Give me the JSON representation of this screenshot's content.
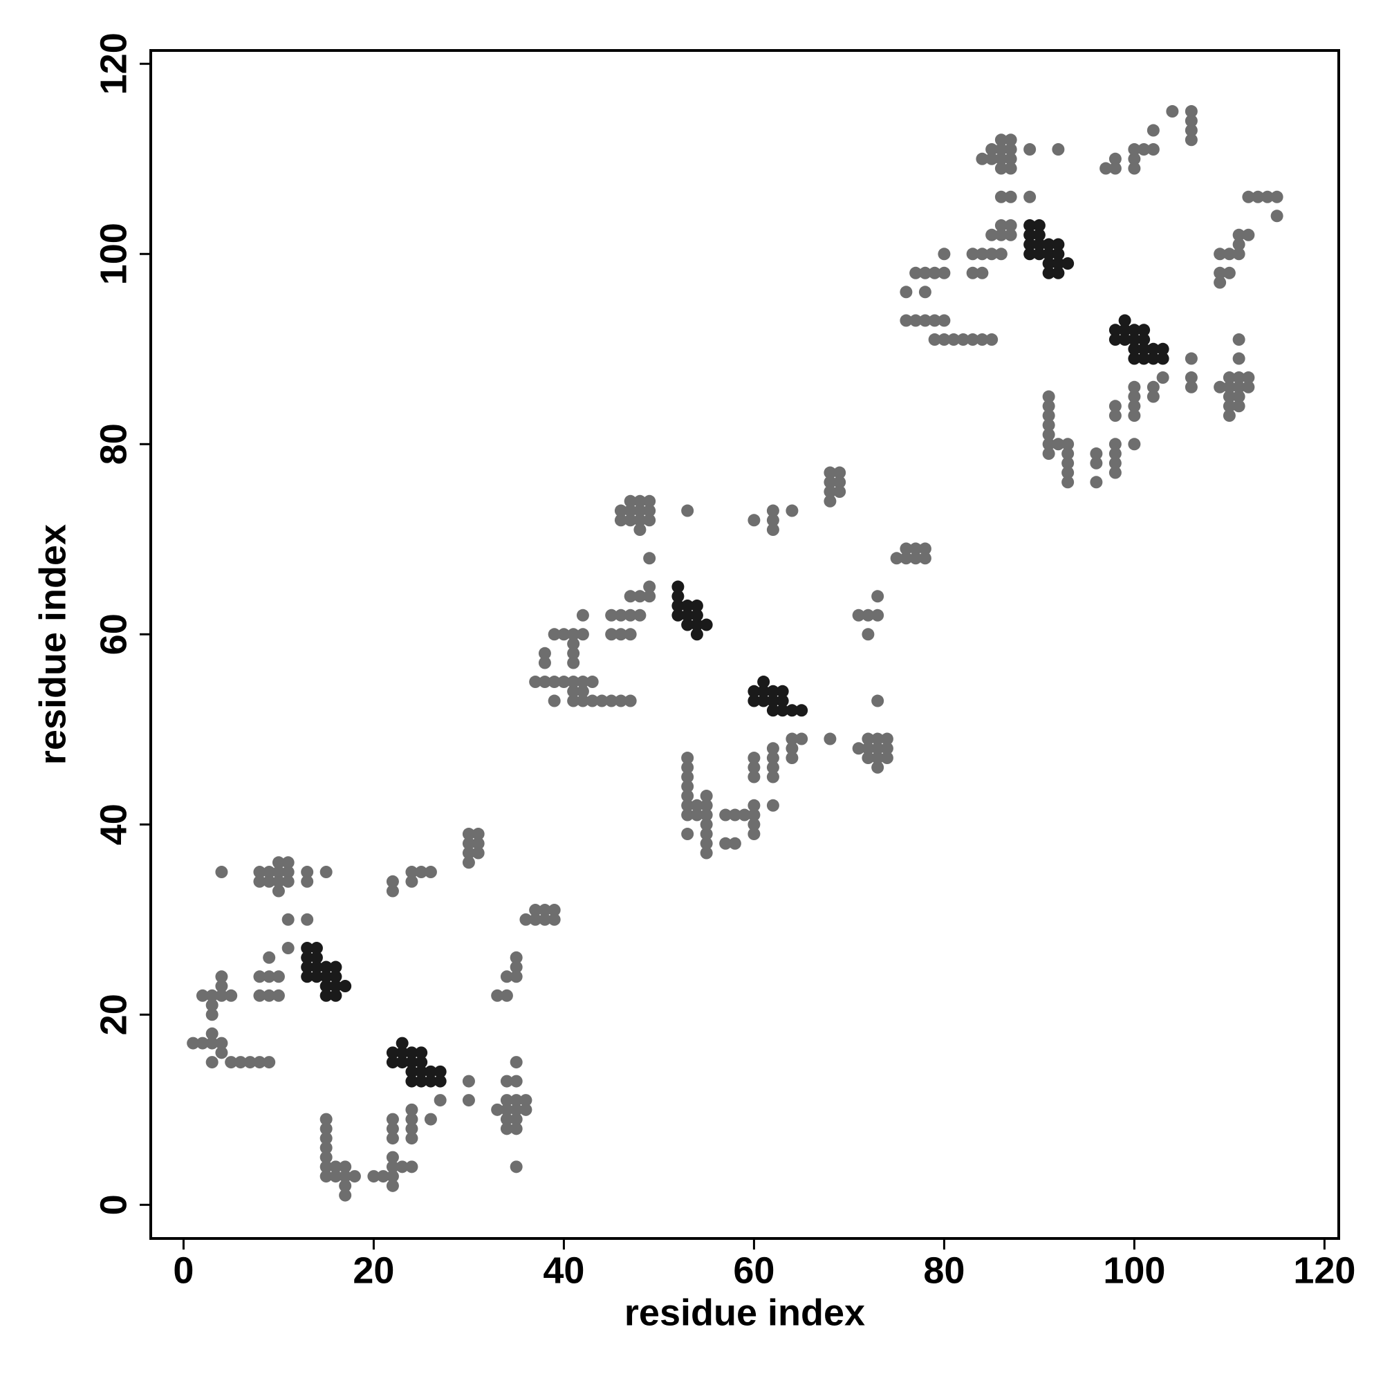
{
  "chart_data": {
    "type": "scatter",
    "xlabel": "residue index",
    "ylabel": "residue index",
    "xlim": [
      -3.45,
      121.5
    ],
    "ylim": [
      -3.54,
      121.4
    ],
    "xticks": [
      0,
      20,
      40,
      60,
      80,
      100,
      120
    ],
    "yticks": [
      0,
      20,
      40,
      60,
      80,
      100,
      120
    ],
    "series": [
      {
        "color": "#6e6e6e",
        "x": [
          1,
          2,
          3,
          4,
          3,
          4,
          3,
          5,
          6,
          7,
          8,
          9,
          2,
          3,
          4,
          3,
          3,
          4,
          4,
          5,
          8,
          9,
          10,
          8,
          9,
          10,
          9,
          11,
          11,
          13,
          4,
          8,
          8,
          9,
          9,
          10,
          10,
          10,
          10,
          11,
          11,
          11,
          13,
          13,
          15,
          22,
          22,
          24,
          24,
          25,
          26,
          30,
          30,
          30,
          30,
          31,
          31,
          31,
          36,
          37,
          37,
          38,
          38,
          39,
          39,
          33,
          34,
          34,
          35,
          35,
          35,
          15,
          15,
          15,
          15,
          15,
          15,
          15,
          16,
          16,
          17,
          17,
          17,
          17,
          18,
          20,
          21,
          22,
          22,
          22,
          22,
          22,
          22,
          22,
          23,
          24,
          24,
          24,
          24,
          24,
          27,
          26,
          30,
          30,
          33,
          34,
          34,
          34,
          34,
          34,
          35,
          35,
          35,
          35,
          35,
          35,
          36,
          36,
          35,
          37,
          38,
          39,
          40,
          41,
          42,
          43,
          38,
          38,
          39,
          40,
          41,
          41,
          42,
          42,
          41,
          41,
          39,
          41,
          41,
          42,
          42,
          43,
          44,
          45,
          46,
          47,
          45,
          45,
          46,
          46,
          47,
          47,
          47,
          48,
          48,
          49,
          49,
          49,
          46,
          46,
          47,
          47,
          47,
          48,
          48,
          48,
          48,
          49,
          49,
          49,
          53,
          60,
          62,
          62,
          62,
          64,
          68,
          68,
          68,
          68,
          69,
          69,
          69,
          75,
          76,
          76,
          77,
          77,
          78,
          78,
          71,
          72,
          72,
          73,
          73,
          53,
          53,
          53,
          53,
          53,
          53,
          53,
          53,
          54,
          54,
          55,
          55,
          55,
          55,
          55,
          55,
          55,
          57,
          57,
          58,
          58,
          59,
          60,
          60,
          60,
          60,
          60,
          60,
          60,
          62,
          62,
          62,
          62,
          62,
          64,
          64,
          64,
          65,
          68,
          71,
          72,
          72,
          72,
          73,
          73,
          73,
          73,
          73,
          74,
          74,
          74,
          76,
          76,
          77,
          77,
          78,
          78,
          78,
          79,
          79,
          79,
          80,
          80,
          80,
          80,
          81,
          82,
          83,
          84,
          85,
          83,
          83,
          84,
          84,
          85,
          85,
          86,
          86,
          86,
          87,
          87,
          86,
          87,
          84,
          85,
          85,
          86,
          86,
          86,
          86,
          87,
          87,
          87,
          87,
          89,
          89,
          92,
          91,
          91,
          91,
          91,
          91,
          91,
          91,
          92,
          93,
          93,
          93,
          93,
          93,
          96,
          96,
          96,
          98,
          98,
          98,
          98,
          98,
          98,
          100,
          100,
          100,
          100,
          100,
          102,
          102,
          103,
          106,
          106,
          106,
          97,
          98,
          98,
          100,
          100,
          100,
          101,
          102,
          102,
          104,
          106,
          106,
          106,
          106,
          109,
          109,
          109,
          110,
          110,
          111,
          111,
          111,
          112,
          112,
          113,
          114,
          115,
          115,
          109,
          110,
          110,
          110,
          110,
          110,
          111,
          111,
          111,
          111,
          111,
          111,
          112,
          112
        ],
        "y": [
          17,
          17,
          17,
          17,
          18,
          16,
          15,
          15,
          15,
          15,
          15,
          15,
          22,
          22,
          22,
          21,
          20,
          23,
          24,
          22,
          22,
          22,
          22,
          24,
          24,
          24,
          26,
          27,
          30,
          30,
          35,
          35,
          34,
          35,
          34,
          35,
          36,
          34,
          33,
          35,
          36,
          34,
          35,
          34,
          35,
          34,
          33,
          35,
          34,
          35,
          35,
          39,
          38,
          37,
          36,
          39,
          38,
          37,
          30,
          30,
          31,
          30,
          31,
          30,
          31,
          22,
          22,
          24,
          24,
          25,
          26,
          9,
          8,
          7,
          6,
          5,
          4,
          3,
          3,
          4,
          4,
          3,
          2,
          1,
          3,
          3,
          3,
          3,
          2,
          4,
          5,
          7,
          8,
          9,
          4,
          4,
          7,
          8,
          9,
          10,
          11,
          9,
          13,
          11,
          10,
          8,
          9,
          10,
          11,
          13,
          8,
          9,
          10,
          11,
          13,
          15,
          10,
          11,
          4,
          55,
          55,
          55,
          55,
          55,
          55,
          55,
          57,
          58,
          60,
          60,
          59,
          60,
          60,
          62,
          57,
          58,
          53,
          54,
          53,
          53,
          54,
          53,
          53,
          53,
          53,
          53,
          60,
          62,
          60,
          62,
          60,
          62,
          64,
          62,
          64,
          64,
          65,
          68,
          72,
          73,
          72,
          73,
          74,
          71,
          72,
          73,
          74,
          72,
          73,
          74,
          73,
          72,
          73,
          72,
          71,
          73,
          77,
          76,
          75,
          74,
          77,
          76,
          75,
          68,
          68,
          69,
          68,
          69,
          68,
          69,
          62,
          62,
          60,
          62,
          64,
          47,
          46,
          45,
          44,
          43,
          42,
          41,
          39,
          41,
          42,
          37,
          38,
          39,
          40,
          41,
          42,
          43,
          41,
          38,
          41,
          38,
          41,
          39,
          40,
          41,
          42,
          45,
          46,
          47,
          42,
          45,
          46,
          47,
          48,
          47,
          48,
          49,
          49,
          49,
          48,
          47,
          48,
          49,
          46,
          47,
          48,
          49,
          53,
          47,
          48,
          49,
          96,
          93,
          98,
          93,
          98,
          96,
          93,
          98,
          93,
          91,
          98,
          100,
          93,
          91,
          91,
          91,
          91,
          91,
          91,
          98,
          100,
          100,
          98,
          102,
          100,
          102,
          100,
          103,
          102,
          103,
          106,
          106,
          110,
          110,
          111,
          110,
          111,
          112,
          109,
          110,
          111,
          112,
          109,
          111,
          106,
          111,
          80,
          81,
          82,
          83,
          84,
          85,
          79,
          80,
          76,
          77,
          78,
          79,
          80,
          76,
          78,
          79,
          77,
          78,
          79,
          80,
          83,
          84,
          80,
          83,
          84,
          85,
          86,
          85,
          86,
          87,
          87,
          86,
          89,
          109,
          109,
          110,
          109,
          110,
          111,
          111,
          111,
          113,
          115,
          115,
          114,
          113,
          112,
          97,
          98,
          100,
          98,
          100,
          100,
          101,
          102,
          102,
          106,
          106,
          106,
          106,
          104,
          86,
          83,
          84,
          85,
          86,
          87,
          84,
          85,
          86,
          87,
          89,
          91,
          86,
          87
        ]
      },
      {
        "color": "#1a1a1a",
        "x": [
          13,
          13,
          13,
          13,
          14,
          14,
          14,
          14,
          15,
          15,
          15,
          15,
          16,
          16,
          16,
          16,
          17,
          22,
          22,
          23,
          23,
          23,
          24,
          24,
          24,
          24,
          25,
          25,
          25,
          25,
          26,
          26,
          27,
          27,
          52,
          52,
          52,
          52,
          53,
          53,
          53,
          54,
          54,
          54,
          54,
          55,
          60,
          60,
          61,
          61,
          61,
          62,
          62,
          62,
          63,
          63,
          63,
          64,
          65,
          89,
          89,
          89,
          89,
          90,
          90,
          90,
          90,
          91,
          91,
          91,
          91,
          92,
          92,
          92,
          92,
          93,
          98,
          98,
          99,
          99,
          99,
          100,
          100,
          100,
          100,
          101,
          101,
          101,
          101,
          102,
          102,
          103,
          103
        ],
        "y": [
          24,
          25,
          26,
          27,
          24,
          25,
          26,
          27,
          22,
          23,
          24,
          25,
          22,
          23,
          24,
          25,
          23,
          15,
          16,
          15,
          16,
          17,
          13,
          14,
          15,
          16,
          13,
          14,
          15,
          16,
          13,
          14,
          13,
          14,
          63,
          64,
          65,
          62,
          61,
          62,
          63,
          60,
          61,
          62,
          63,
          61,
          53,
          54,
          53,
          54,
          55,
          52,
          53,
          54,
          52,
          53,
          54,
          52,
          52,
          100,
          101,
          102,
          103,
          100,
          101,
          102,
          103,
          98,
          99,
          100,
          101,
          98,
          99,
          100,
          101,
          99,
          91,
          92,
          91,
          92,
          93,
          89,
          90,
          91,
          92,
          89,
          90,
          91,
          92,
          89,
          90,
          89,
          90
        ]
      }
    ]
  }
}
